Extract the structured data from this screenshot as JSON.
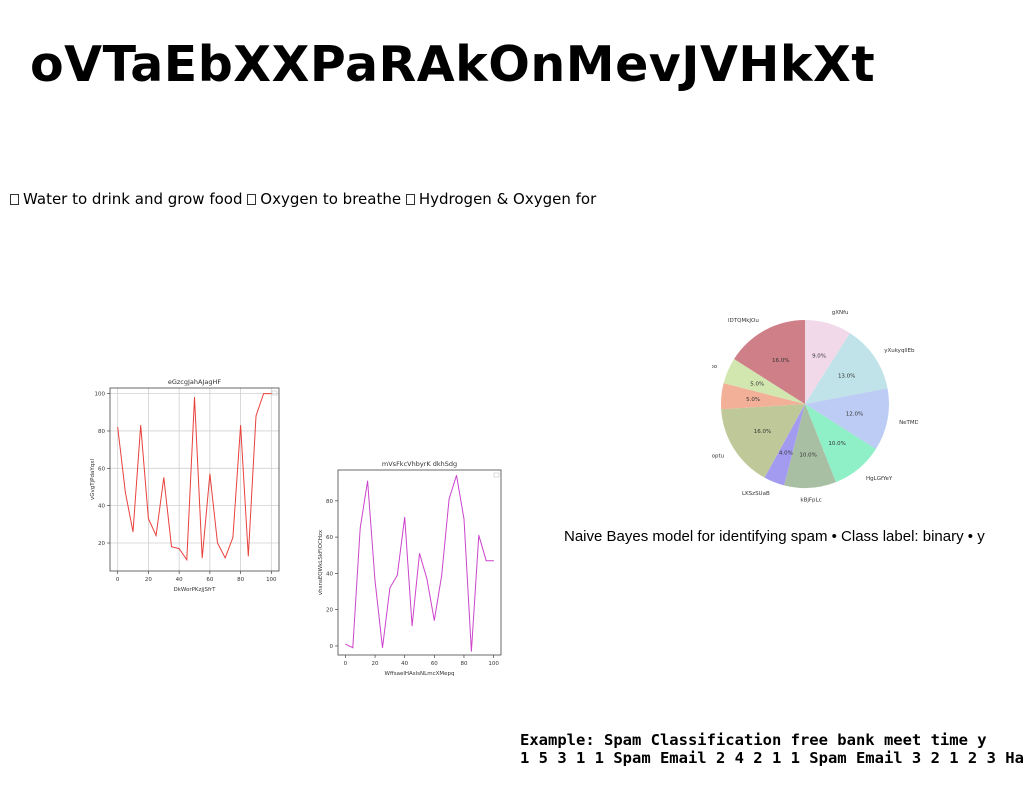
{
  "page": {
    "title": "oVTaEbXXPaRAkOnMevJVHkXt",
    "bullets": [
      "Water to drink and grow food",
      "Oxygen to breathe",
      "Hydrogen & Oxygen for"
    ],
    "nb_text": "Naive Bayes model for identifying spam • Class label: binary • y",
    "example_line1": "Example: Spam Classification free bank meet time y",
    "example_line2": "1 5 3 1 1 Spam Email 2 4 2 1 1 Spam Email 3 2 1 2 3 Ham"
  },
  "chart_data": [
    {
      "type": "line",
      "title": "eGzcgJahAJagHF",
      "xlabel": "DkWorPKzjjSfrT",
      "ylabel": "vGvgTjPdaYqxl",
      "xlim": [
        -5,
        105
      ],
      "ylim": [
        5,
        103
      ],
      "xticks": [
        0,
        20,
        40,
        60,
        80,
        100
      ],
      "yticks": [
        20,
        40,
        60,
        80,
        100
      ],
      "grid": true,
      "color": "#e8413c",
      "x": [
        0,
        5,
        10,
        15,
        20,
        25,
        30,
        35,
        40,
        45,
        50,
        55,
        60,
        65,
        70,
        75,
        80,
        85,
        90,
        95,
        100
      ],
      "y": [
        82,
        47,
        26,
        83,
        33,
        24,
        55,
        18,
        17,
        11,
        98,
        12,
        57,
        20,
        12,
        23,
        83,
        13,
        88,
        100,
        100
      ]
    },
    {
      "type": "line",
      "title": "mVsFkcVhbyrK dkhSdg",
      "xlabel": "WffsaelHAslsNLmcXMepq",
      "ylabel": "vhsnsEQWkLSkFlOCHzx",
      "xlim": [
        -5,
        105
      ],
      "ylim": [
        -5,
        97
      ],
      "xticks": [
        0,
        20,
        40,
        60,
        80,
        100
      ],
      "yticks": [
        0,
        20,
        40,
        60,
        80
      ],
      "grid": false,
      "color": "#cc44cc",
      "x": [
        0,
        5,
        10,
        15,
        20,
        25,
        30,
        35,
        40,
        45,
        50,
        55,
        60,
        65,
        70,
        75,
        80,
        85,
        90,
        95,
        100
      ],
      "y": [
        1,
        -1,
        65,
        91,
        36,
        -1,
        32,
        39,
        71,
        11,
        51,
        37,
        14,
        39,
        81,
        94,
        70,
        -3,
        61,
        47,
        47
      ]
    },
    {
      "type": "pie",
      "labels": [
        "gXNfu",
        "yXukyqllEb",
        "NeTMDWMgC",
        "HgLGfYeY",
        "kBjFpLc",
        "LKSzSUaB",
        "KWMoptu",
        "uzFcpF",
        "fhQTUpo",
        "lDTQMkJOu"
      ],
      "values": [
        9.0,
        13.0,
        12.0,
        10.0,
        10.0,
        4.0,
        16.0,
        5.0,
        5.0,
        16.0
      ],
      "colors": [
        "#f1d9ea",
        "#bfe3e8",
        "#bcccf4",
        "#8fefc6",
        "#a9bfa3",
        "#a39bef",
        "#bec899",
        "#f2b098",
        "#d2e6b0",
        "#cf7f88"
      ]
    }
  ]
}
